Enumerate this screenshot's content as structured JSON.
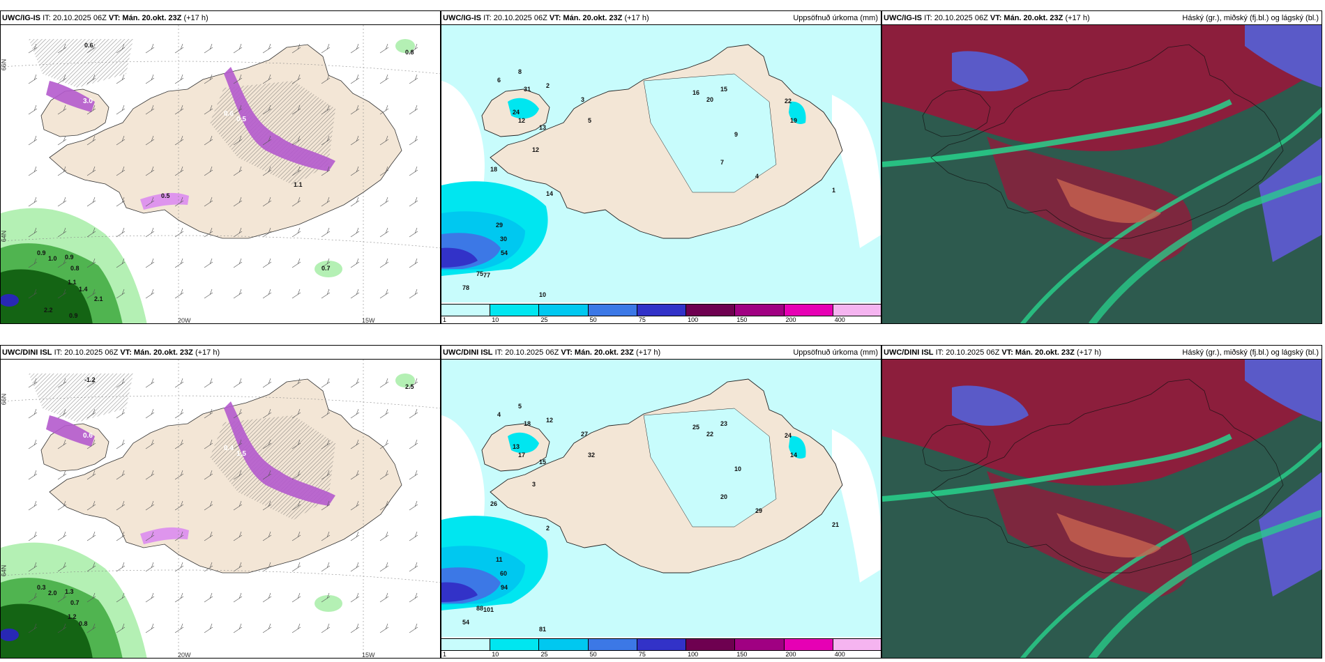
{
  "panels": [
    {
      "id": "p1",
      "header_model": "UWC/IG-IS",
      "header_it": "IT: 20.10.2025 06Z",
      "header_vt": "VT: Mán. 20.okt. 23Z",
      "header_lead": "(+17 h)",
      "header_right": "",
      "type": "precip-type",
      "lon_labels": [
        "20W",
        "15W"
      ],
      "lat_labels": [
        "66N",
        "64N"
      ],
      "values": [
        "0.6",
        "0.8",
        "3.0",
        "1.3",
        "0.6",
        "0.5",
        "0.9",
        "1.0",
        "0.9",
        "0.8",
        "1.1",
        "1.4",
        "2.1",
        "2.2",
        "0.9",
        "0.7",
        "0.5",
        "1.1"
      ]
    },
    {
      "id": "p2",
      "header_model": "UWC/IG-IS",
      "header_it": "IT: 20.10.2025 06Z",
      "header_vt": "VT: Mán. 20.okt. 23Z",
      "header_lead": "(+17 h)",
      "header_right": "Uppsöfnuð úrkoma (mm)",
      "type": "accum",
      "values": [
        "6",
        "8",
        "2",
        "3",
        "5",
        "18",
        "31",
        "24",
        "13",
        "12",
        "16",
        "20",
        "15",
        "22",
        "19",
        "9",
        "7",
        "4",
        "1",
        "29",
        "30",
        "54",
        "75",
        "77",
        "78",
        "10",
        "14",
        "12"
      ]
    },
    {
      "id": "p3",
      "header_model": "UWC/IG-IS",
      "header_it": "IT: 20.10.2025 06Z",
      "header_vt": "VT: Mán. 20.okt. 23Z",
      "header_lead": "(+17 h)",
      "header_right": "Háský (gr.), miðský (fj.bl.) og lágský (bl.)",
      "type": "cloud"
    },
    {
      "id": "p4",
      "header_model": "UWC/DINI ISL",
      "header_it": "IT: 20.10.2025 06Z",
      "header_vt": "VT: Mán. 20.okt. 23Z",
      "header_lead": "(+17 h)",
      "header_right": "",
      "type": "precip-type",
      "lon_labels": [
        "20W",
        "15W"
      ],
      "lat_labels": [
        "66N",
        "64N"
      ],
      "values": [
        "-1.2",
        "2.5",
        "0.6",
        "1.0",
        "0.4",
        "1.5",
        "0.3",
        "2.0",
        "1.3",
        "0.7",
        "1.2",
        "0.8"
      ]
    },
    {
      "id": "p5",
      "header_model": "UWC/DINI ISL",
      "header_it": "IT: 20.10.2025 06Z",
      "header_vt": "VT: Mán. 20.okt. 23Z",
      "header_lead": "(+17 h)",
      "header_right": "Uppsöfnuð úrkoma (mm)",
      "type": "accum",
      "values": [
        "4",
        "5",
        "12",
        "27",
        "32",
        "26",
        "18",
        "13",
        "15",
        "17",
        "25",
        "22",
        "23",
        "24",
        "14",
        "10",
        "20",
        "29",
        "21",
        "11",
        "60",
        "94",
        "88",
        "101",
        "54",
        "81",
        "2",
        "3"
      ]
    },
    {
      "id": "p6",
      "header_model": "UWC/DINI ISL",
      "header_it": "IT: 20.10.2025 06Z",
      "header_vt": "VT: Mán. 20.okt. 23Z",
      "header_lead": "(+17 h)",
      "header_right": "Háský (gr.), miðský (fj.bl.) og lágský (bl.)",
      "type": "cloud"
    }
  ],
  "legend": {
    "labels": [
      "1",
      "10",
      "25",
      "50",
      "75",
      "100",
      "150",
      "200",
      "400"
    ],
    "colors": [
      "#c8fcfc",
      "#00e6f0",
      "#00c8f0",
      "#3c78e6",
      "#3232c8",
      "#6e0050",
      "#a00082",
      "#e600b4",
      "#f5b4f0"
    ]
  },
  "colors": {
    "land": "#f3e6d6",
    "light_cyan": "#c8fcfc",
    "cyan": "#00e6f0",
    "sky": "#00c8f0",
    "blue": "#3c78e6",
    "dblue": "#3232c8",
    "purple": "#b45acd",
    "pink": "#dc8cf0",
    "green_l": "#b4f0b4",
    "green_m": "#50b450",
    "green_d": "#146414",
    "cloud_high": "#8c1e3c",
    "cloud_mid": "#3c6e5a",
    "cloud_low": "#5a5ac8",
    "cloud_teal": "#28d28c",
    "cloud_orange": "#c86450"
  }
}
